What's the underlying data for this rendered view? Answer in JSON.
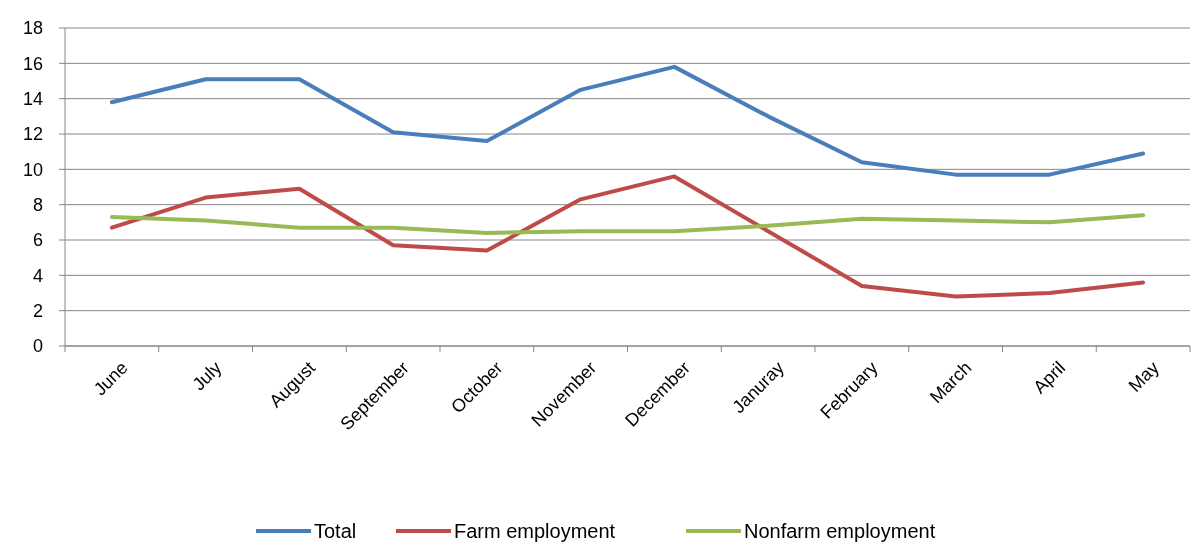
{
  "chart_data": {
    "type": "line",
    "categories": [
      "June",
      "July",
      "August",
      "September",
      "October",
      "November",
      "December",
      "Januray",
      "February",
      "March",
      "April",
      "May"
    ],
    "series": [
      {
        "name": "Total",
        "color": "#4a7ebb",
        "values": [
          13.8,
          15.1,
          15.1,
          12.1,
          11.6,
          14.5,
          15.8,
          13.0,
          10.4,
          9.7,
          9.7,
          10.9
        ]
      },
      {
        "name": "Farm employment",
        "color": "#be4b48",
        "values": [
          6.7,
          8.4,
          8.9,
          5.7,
          5.4,
          8.3,
          9.6,
          6.5,
          3.4,
          2.8,
          3.0,
          3.6
        ]
      },
      {
        "name": "Nonfarm employment",
        "color": "#98b954",
        "values": [
          7.3,
          7.1,
          6.7,
          6.7,
          6.4,
          6.5,
          6.5,
          6.8,
          7.2,
          7.1,
          7.0,
          7.4
        ]
      }
    ],
    "ylim": [
      0,
      18
    ],
    "yticks": [
      0,
      2,
      4,
      6,
      8,
      10,
      12,
      14,
      16,
      18
    ],
    "grid": "y",
    "legend": "bottom",
    "marker": "none",
    "line_style": "solid"
  }
}
